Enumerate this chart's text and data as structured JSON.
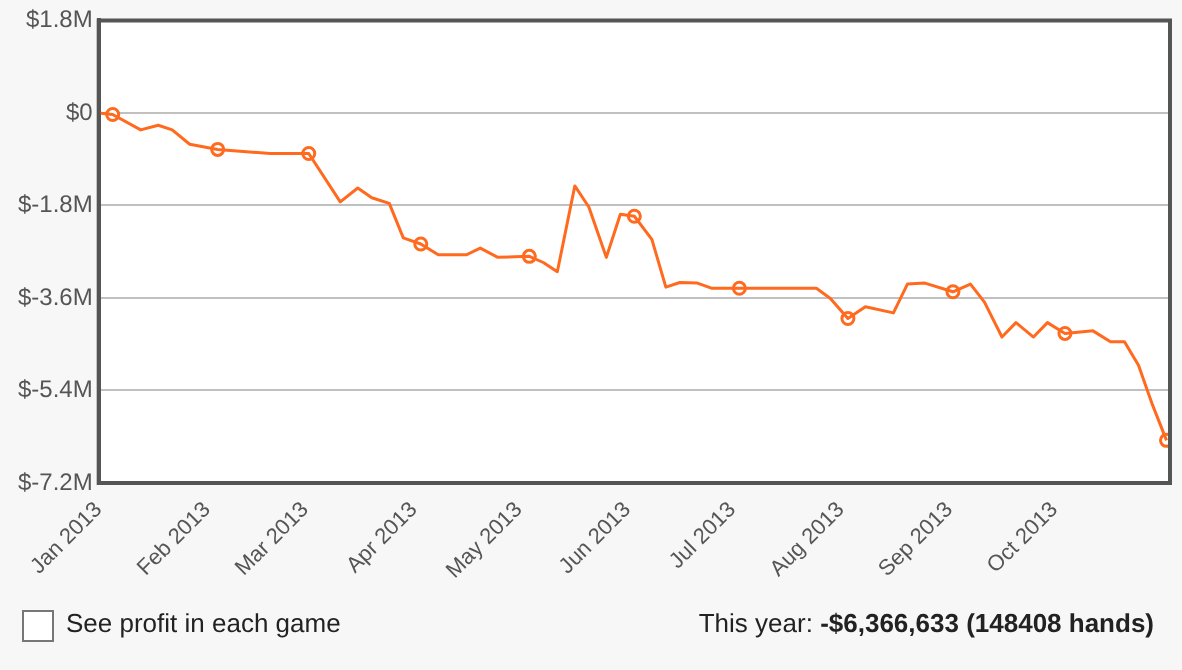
{
  "chart_data": {
    "type": "line",
    "xlim": [
      "2013-01-01",
      "2013-11-03"
    ],
    "xticks": [
      {
        "value": "2013-01-01",
        "label": "Jan 2013"
      },
      {
        "value": "2013-02-01",
        "label": "Feb 2013"
      },
      {
        "value": "2013-03-01",
        "label": "Mar 2013"
      },
      {
        "value": "2013-04-01",
        "label": "Apr 2013"
      },
      {
        "value": "2013-05-01",
        "label": "May 2013"
      },
      {
        "value": "2013-06-01",
        "label": "Jun 2013"
      },
      {
        "value": "2013-07-01",
        "label": "Jul 2013"
      },
      {
        "value": "2013-08-01",
        "label": "Aug 2013"
      },
      {
        "value": "2013-09-01",
        "label": "Sep 2013"
      },
      {
        "value": "2013-10-01",
        "label": "Oct 2013"
      }
    ],
    "ylim": [
      -7.2,
      1.8
    ],
    "yticks": [
      {
        "value": -7.2,
        "label": "$-7.2M"
      },
      {
        "value": -5.4,
        "label": "$-5.4M"
      },
      {
        "value": -3.6,
        "label": "$-3.6M"
      },
      {
        "value": -1.8,
        "label": "$-1.8M"
      },
      {
        "value": 0,
        "label": "$0"
      },
      {
        "value": 1.8,
        "label": "$1.8M"
      }
    ],
    "grid": "y",
    "legend": false,
    "series": [
      {
        "marker": "none",
        "color": "#ff6a1f",
        "x": [
          "2013-01-01",
          "2013-01-05",
          "2013-01-13",
          "2013-01-18",
          "2013-01-22",
          "2013-01-27",
          "2013-02-04",
          "2013-02-19",
          "2013-03-02",
          "2013-03-11",
          "2013-03-16",
          "2013-03-20",
          "2013-03-25",
          "2013-03-29",
          "2013-04-03",
          "2013-04-08",
          "2013-04-16",
          "2013-04-20",
          "2013-04-25",
          "2013-05-04",
          "2013-05-08",
          "2013-05-12",
          "2013-05-17",
          "2013-05-21",
          "2013-05-26",
          "2013-05-30",
          "2013-06-03",
          "2013-06-08",
          "2013-06-12",
          "2013-06-16",
          "2013-06-21",
          "2013-06-25",
          "2013-07-03",
          "2013-07-25",
          "2013-07-29",
          "2013-08-03",
          "2013-08-08",
          "2013-08-16",
          "2013-08-20",
          "2013-08-25",
          "2013-09-02",
          "2013-09-07",
          "2013-09-11",
          "2013-09-16",
          "2013-09-20",
          "2013-09-25",
          "2013-09-29",
          "2013-10-04",
          "2013-10-12",
          "2013-10-17",
          "2013-10-21",
          "2013-10-25",
          "2013-10-29",
          "2013-11-02"
        ],
        "values": [
          0,
          -0.03,
          -0.33,
          -0.24,
          -0.33,
          -0.61,
          -0.71,
          -0.79,
          -0.79,
          -1.73,
          -1.46,
          -1.65,
          -1.76,
          -2.43,
          -2.55,
          -2.76,
          -2.76,
          -2.63,
          -2.81,
          -2.79,
          -2.91,
          -3.09,
          -1.42,
          -1.83,
          -2.81,
          -1.97,
          -2.01,
          -2.46,
          -3.39,
          -3.3,
          -3.31,
          -3.41,
          -3.41,
          -3.41,
          -3.61,
          -4.0,
          -3.77,
          -3.89,
          -3.33,
          -3.31,
          -3.48,
          -3.33,
          -3.68,
          -4.36,
          -4.08,
          -4.36,
          -4.08,
          -4.29,
          -4.24,
          -4.45,
          -4.45,
          -4.91,
          -5.68,
          -6.37
        ]
      },
      {
        "type": "scatter",
        "marker": "circle",
        "color": "#ff6a1f",
        "x": [
          "2013-01-05",
          "2013-02-04",
          "2013-03-02",
          "2013-04-03",
          "2013-05-04",
          "2013-06-03",
          "2013-07-03",
          "2013-08-03",
          "2013-09-02",
          "2013-10-04",
          "2013-11-02"
        ],
        "values": [
          -0.03,
          -0.71,
          -0.79,
          -2.55,
          -2.79,
          -2.01,
          -3.41,
          -4.0,
          -3.48,
          -4.29,
          -6.37
        ]
      }
    ],
    "annotations": [
      "See profit in each game",
      "This year:",
      "-$6,366,633 (148408 hands)"
    ]
  }
}
